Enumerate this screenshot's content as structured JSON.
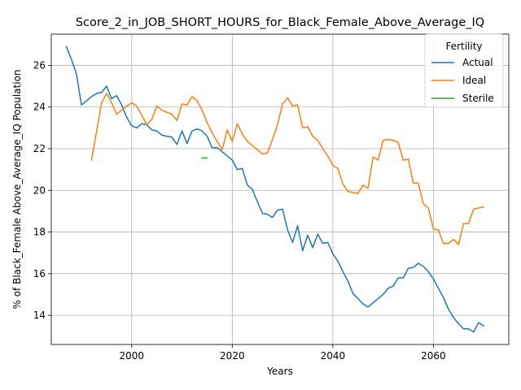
{
  "chart_data": {
    "type": "line",
    "title": "Score_2_in_JOB_SHORT_HOURS_for_Black_Female_Above_Average_IQ",
    "xlabel": "Years",
    "ylabel": "% of Black_Female Above_Average_IQ Population",
    "xlim": [
      1984,
      2075
    ],
    "ylim": [
      12.6,
      27.5
    ],
    "xticks": [
      2000,
      2020,
      2040,
      2060
    ],
    "yticks": [
      14,
      16,
      18,
      20,
      22,
      24,
      26
    ],
    "grid": true,
    "legend": {
      "title": "Fertility",
      "position": "top-right"
    },
    "series": [
      {
        "name": "Actual",
        "color": "#1f77b4",
        "x": [
          1987,
          1988,
          1989,
          1990,
          1991,
          1992,
          1993,
          1994,
          1995,
          1996,
          1997,
          1998,
          1999,
          2000,
          2001,
          2002,
          2003,
          2004,
          2005,
          2006,
          2007,
          2008,
          2009,
          2010,
          2011,
          2012,
          2013,
          2014,
          2015,
          2016,
          2017,
          2018,
          2019,
          2020,
          2021,
          2022,
          2023,
          2024,
          2025,
          2026,
          2027,
          2028,
          2029,
          2030,
          2031,
          2032,
          2033,
          2034,
          2035,
          2036,
          2037,
          2038,
          2039,
          2040,
          2041,
          2042,
          2043,
          2044,
          2045,
          2046,
          2047,
          2048,
          2049,
          2050,
          2051,
          2052,
          2053,
          2054,
          2055,
          2056,
          2057,
          2058,
          2059,
          2060,
          2061,
          2062,
          2063,
          2064,
          2065,
          2066,
          2067,
          2068,
          2069,
          2070
        ],
        "y": [
          26.9,
          26.3,
          25.6,
          24.1,
          24.3,
          24.5,
          24.65,
          24.7,
          25.0,
          24.4,
          24.55,
          24.1,
          23.5,
          23.1,
          23.0,
          23.2,
          23.15,
          22.9,
          22.85,
          22.65,
          22.6,
          22.55,
          22.2,
          22.85,
          22.25,
          22.85,
          22.95,
          22.85,
          22.6,
          22.05,
          22.05,
          21.85,
          21.65,
          21.45,
          21.0,
          21.05,
          20.25,
          20.05,
          19.45,
          18.9,
          18.85,
          18.7,
          19.05,
          19.1,
          18.1,
          17.5,
          18.3,
          17.1,
          17.85,
          17.25,
          17.9,
          17.45,
          17.5,
          16.95,
          16.6,
          16.1,
          15.65,
          15.05,
          14.8,
          14.55,
          14.4,
          14.6,
          14.8,
          15.0,
          15.3,
          15.4,
          15.8,
          15.8,
          16.25,
          16.3,
          16.5,
          16.35,
          16.1,
          15.75,
          15.3,
          14.85,
          14.3,
          13.9,
          13.6,
          13.35,
          13.35,
          13.2,
          13.65,
          13.5
        ]
      },
      {
        "name": "Ideal",
        "color": "#ff7f0e",
        "x": [
          1992,
          1993,
          1994,
          1995,
          1996,
          1997,
          1998,
          1999,
          2000,
          2001,
          2002,
          2003,
          2004,
          2005,
          2006,
          2007,
          2008,
          2009,
          2010,
          2011,
          2012,
          2013,
          2014,
          2015,
          2016,
          2017,
          2018,
          2019,
          2020,
          2021,
          2022,
          2023,
          2024,
          2025,
          2026,
          2027,
          2028,
          2029,
          2030,
          2031,
          2032,
          2033,
          2034,
          2035,
          2036,
          2037,
          2038,
          2039,
          2040,
          2041,
          2042,
          2043,
          2044,
          2045,
          2046,
          2047,
          2048,
          2049,
          2050,
          2051,
          2052,
          2053,
          2054,
          2055,
          2056,
          2057,
          2058,
          2059,
          2060,
          2061,
          2062,
          2063,
          2064,
          2065,
          2066,
          2067,
          2068,
          2069,
          2070
        ],
        "y": [
          21.45,
          22.8,
          24.2,
          24.65,
          24.2,
          23.65,
          23.85,
          24.05,
          24.2,
          24.05,
          23.6,
          23.15,
          23.4,
          24.05,
          23.85,
          23.75,
          23.65,
          23.35,
          24.15,
          24.1,
          24.5,
          24.3,
          23.85,
          23.25,
          22.75,
          22.35,
          21.95,
          22.9,
          22.35,
          23.2,
          22.7,
          22.35,
          22.15,
          21.95,
          21.75,
          21.8,
          22.45,
          23.15,
          24.15,
          24.45,
          24.05,
          24.1,
          23.0,
          23.05,
          22.6,
          22.4,
          22.0,
          21.65,
          21.2,
          21.05,
          20.3,
          19.95,
          19.9,
          19.85,
          20.25,
          20.1,
          21.6,
          21.45,
          22.4,
          22.45,
          22.4,
          22.3,
          21.45,
          21.5,
          20.35,
          20.35,
          19.35,
          19.15,
          18.15,
          18.1,
          17.45,
          17.45,
          17.65,
          17.4,
          18.4,
          18.4,
          19.1,
          19.15,
          19.2
        ]
      },
      {
        "name": "Sterile",
        "color": "#2ca02c",
        "x": [
          2014,
          2015
        ],
        "y": [
          21.55,
          21.55
        ]
      }
    ]
  }
}
